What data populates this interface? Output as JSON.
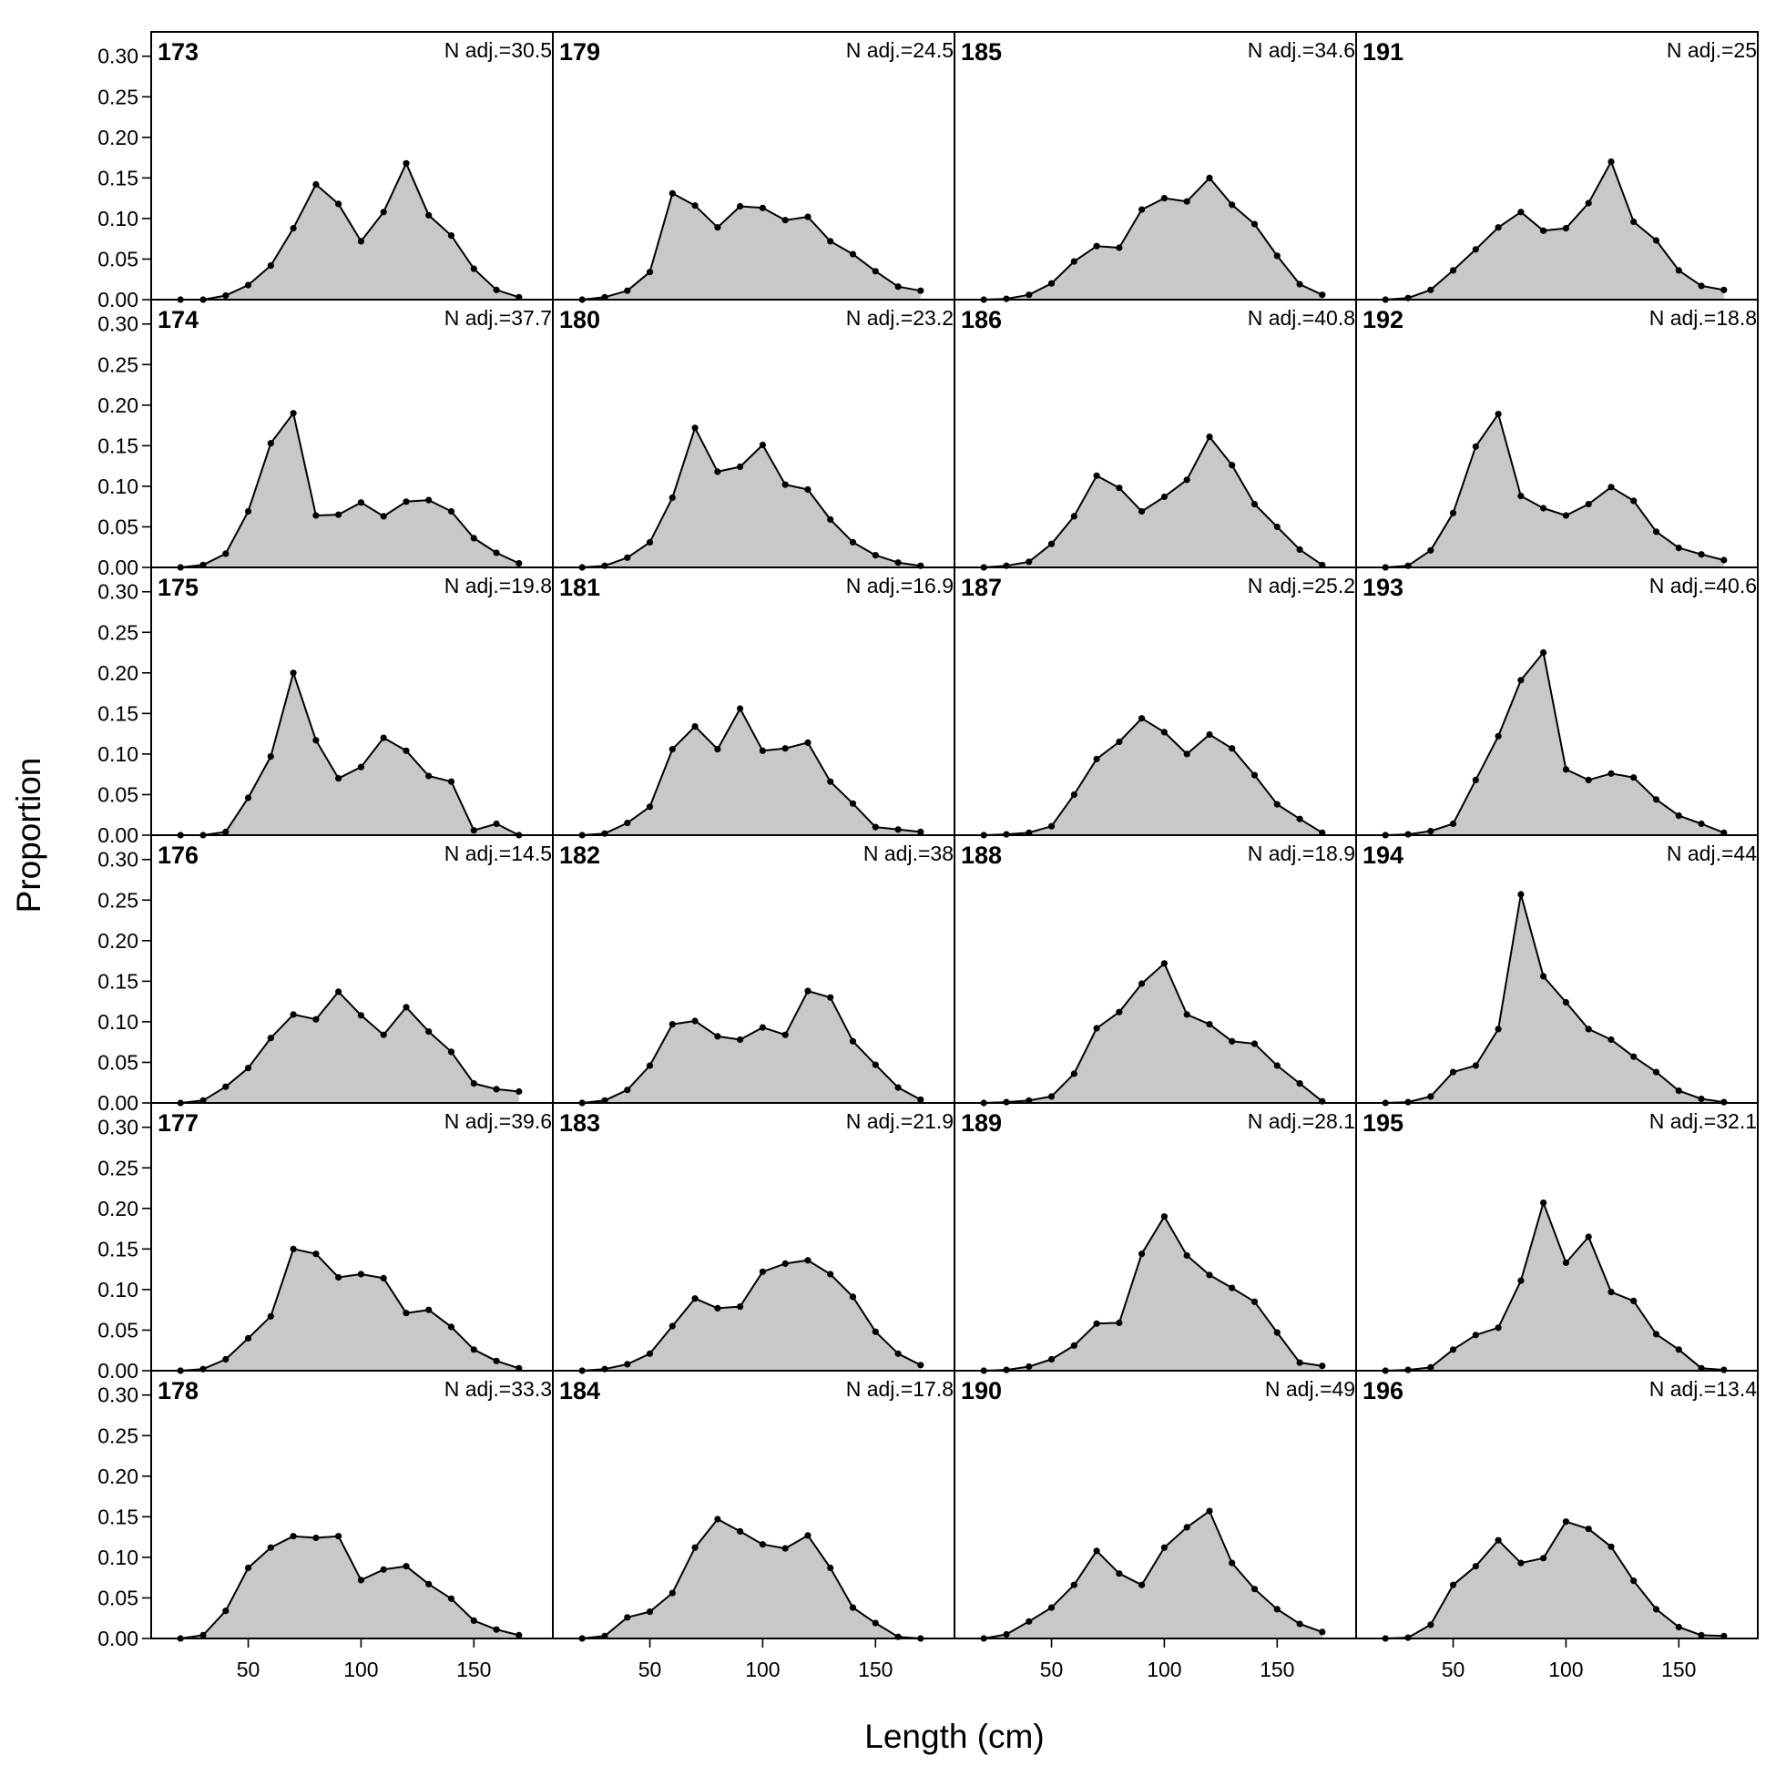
{
  "chart_data": {
    "type": "area",
    "xlabel": "Length (cm)",
    "ylabel": "Proportion",
    "xlim": [
      7,
      185
    ],
    "ylim": [
      0,
      0.33
    ],
    "x_ticks": [
      50,
      100,
      150
    ],
    "x_tick_labels": [
      "50",
      "100",
      "150"
    ],
    "y_ticks": [
      0,
      0.05,
      0.1,
      0.15,
      0.2,
      0.25,
      0.3
    ],
    "y_tick_labels": [
      "0.00",
      "0.05",
      "0.10",
      "0.15",
      "0.20",
      "0.25",
      "0.30"
    ],
    "layout": "6 rows x 4 columns, filled column-wise",
    "fill_color": "#c8c8c8",
    "line_color": "#000000",
    "x": [
      20,
      30,
      40,
      50,
      60,
      70,
      80,
      90,
      100,
      110,
      120,
      130,
      140,
      150,
      160,
      170
    ],
    "panels": [
      {
        "id": "173",
        "n_label": "N adj.=30.5",
        "values": [
          0,
          0,
          0.005,
          0.018,
          0.042,
          0.088,
          0.142,
          0.118,
          0.072,
          0.108,
          0.168,
          0.104,
          0.079,
          0.038,
          0.012,
          0.003
        ]
      },
      {
        "id": "174",
        "n_label": "N adj.=37.7",
        "values": [
          0,
          0.003,
          0.017,
          0.069,
          0.153,
          0.19,
          0.064,
          0.065,
          0.08,
          0.063,
          0.081,
          0.083,
          0.069,
          0.036,
          0.018,
          0.005
        ]
      },
      {
        "id": "175",
        "n_label": "N adj.=19.8",
        "values": [
          0,
          0,
          0.004,
          0.046,
          0.097,
          0.2,
          0.117,
          0.07,
          0.084,
          0.12,
          0.104,
          0.073,
          0.066,
          0.006,
          0.014,
          0
        ]
      },
      {
        "id": "176",
        "n_label": "N adj.=14.5",
        "values": [
          0,
          0.003,
          0.02,
          0.043,
          0.08,
          0.109,
          0.103,
          0.137,
          0.108,
          0.084,
          0.118,
          0.088,
          0.063,
          0.024,
          0.017,
          0.014
        ]
      },
      {
        "id": "177",
        "n_label": "N adj.=39.6",
        "values": [
          0,
          0.002,
          0.014,
          0.04,
          0.067,
          0.15,
          0.144,
          0.115,
          0.119,
          0.114,
          0.071,
          0.075,
          0.054,
          0.026,
          0.012,
          0.003
        ]
      },
      {
        "id": "178",
        "n_label": "N adj.=33.3",
        "values": [
          0,
          0.004,
          0.034,
          0.087,
          0.112,
          0.126,
          0.124,
          0.126,
          0.072,
          0.085,
          0.089,
          0.067,
          0.049,
          0.022,
          0.011,
          0.004
        ]
      },
      {
        "id": "179",
        "n_label": "N adj.=24.5",
        "values": [
          0,
          0.003,
          0.011,
          0.034,
          0.131,
          0.116,
          0.089,
          0.115,
          0.113,
          0.098,
          0.102,
          0.072,
          0.056,
          0.035,
          0.016,
          0.011
        ]
      },
      {
        "id": "180",
        "n_label": "N adj.=23.2",
        "values": [
          0,
          0.002,
          0.012,
          0.031,
          0.086,
          0.172,
          0.118,
          0.124,
          0.151,
          0.102,
          0.096,
          0.059,
          0.031,
          0.015,
          0.006,
          0.002
        ]
      },
      {
        "id": "181",
        "n_label": "N adj.=16.9",
        "values": [
          0,
          0.002,
          0.015,
          0.035,
          0.106,
          0.134,
          0.106,
          0.156,
          0.104,
          0.107,
          0.114,
          0.066,
          0.039,
          0.01,
          0.007,
          0.004
        ]
      },
      {
        "id": "182",
        "n_label": "N adj.=38",
        "values": [
          0,
          0.003,
          0.016,
          0.046,
          0.097,
          0.101,
          0.082,
          0.078,
          0.093,
          0.084,
          0.138,
          0.13,
          0.076,
          0.047,
          0.019,
          0.004
        ]
      },
      {
        "id": "183",
        "n_label": "N adj.=21.9",
        "values": [
          0,
          0.002,
          0.008,
          0.021,
          0.055,
          0.089,
          0.077,
          0.079,
          0.122,
          0.132,
          0.136,
          0.119,
          0.091,
          0.048,
          0.021,
          0.007
        ]
      },
      {
        "id": "184",
        "n_label": "N adj.=17.8",
        "values": [
          0,
          0.003,
          0.026,
          0.033,
          0.056,
          0.112,
          0.147,
          0.132,
          0.116,
          0.111,
          0.127,
          0.087,
          0.038,
          0.019,
          0.002,
          0
        ]
      },
      {
        "id": "185",
        "n_label": "N adj.=34.6",
        "values": [
          0,
          0.001,
          0.006,
          0.02,
          0.047,
          0.066,
          0.064,
          0.111,
          0.125,
          0.121,
          0.15,
          0.117,
          0.093,
          0.054,
          0.019,
          0.006
        ]
      },
      {
        "id": "186",
        "n_label": "N adj.=40.8",
        "values": [
          0,
          0.002,
          0.007,
          0.029,
          0.063,
          0.113,
          0.098,
          0.069,
          0.087,
          0.108,
          0.161,
          0.126,
          0.078,
          0.05,
          0.022,
          0.003
        ]
      },
      {
        "id": "187",
        "n_label": "N adj.=25.2",
        "values": [
          0,
          0.001,
          0.003,
          0.011,
          0.05,
          0.094,
          0.115,
          0.144,
          0.127,
          0.1,
          0.124,
          0.107,
          0.074,
          0.038,
          0.02,
          0.003
        ]
      },
      {
        "id": "188",
        "n_label": "N adj.=18.9",
        "values": [
          0,
          0.001,
          0.003,
          0.008,
          0.036,
          0.092,
          0.112,
          0.147,
          0.172,
          0.109,
          0.097,
          0.076,
          0.073,
          0.046,
          0.024,
          0.002
        ]
      },
      {
        "id": "189",
        "n_label": "N adj.=28.1",
        "values": [
          0,
          0.001,
          0.005,
          0.014,
          0.031,
          0.058,
          0.059,
          0.144,
          0.19,
          0.142,
          0.118,
          0.102,
          0.085,
          0.047,
          0.01,
          0.006
        ]
      },
      {
        "id": "190",
        "n_label": "N adj.=49",
        "values": [
          0,
          0.005,
          0.021,
          0.038,
          0.066,
          0.108,
          0.08,
          0.066,
          0.112,
          0.137,
          0.157,
          0.093,
          0.061,
          0.036,
          0.018,
          0.008
        ]
      },
      {
        "id": "191",
        "n_label": "N adj.=25",
        "values": [
          0,
          0.002,
          0.012,
          0.036,
          0.062,
          0.089,
          0.108,
          0.085,
          0.088,
          0.119,
          0.17,
          0.096,
          0.073,
          0.036,
          0.017,
          0.012
        ]
      },
      {
        "id": "192",
        "n_label": "N adj.=18.8",
        "values": [
          0,
          0.002,
          0.021,
          0.067,
          0.149,
          0.189,
          0.088,
          0.073,
          0.064,
          0.078,
          0.099,
          0.082,
          0.044,
          0.024,
          0.016,
          0.009
        ]
      },
      {
        "id": "193",
        "n_label": "N adj.=40.6",
        "values": [
          0,
          0.001,
          0.005,
          0.014,
          0.068,
          0.122,
          0.191,
          0.225,
          0.081,
          0.068,
          0.076,
          0.071,
          0.044,
          0.024,
          0.014,
          0.003
        ]
      },
      {
        "id": "194",
        "n_label": "N adj.=44",
        "values": [
          0,
          0.001,
          0.008,
          0.038,
          0.046,
          0.091,
          0.257,
          0.156,
          0.124,
          0.091,
          0.078,
          0.057,
          0.038,
          0.015,
          0.005,
          0.001
        ]
      },
      {
        "id": "195",
        "n_label": "N adj.=32.1",
        "values": [
          0,
          0.001,
          0.004,
          0.026,
          0.044,
          0.053,
          0.111,
          0.207,
          0.133,
          0.165,
          0.097,
          0.086,
          0.045,
          0.026,
          0.003,
          0.001
        ]
      },
      {
        "id": "196",
        "n_label": "N adj.=13.4",
        "values": [
          0,
          0.001,
          0.017,
          0.066,
          0.089,
          0.121,
          0.093,
          0.099,
          0.144,
          0.135,
          0.113,
          0.071,
          0.036,
          0.014,
          0.004,
          0.003
        ]
      }
    ]
  }
}
